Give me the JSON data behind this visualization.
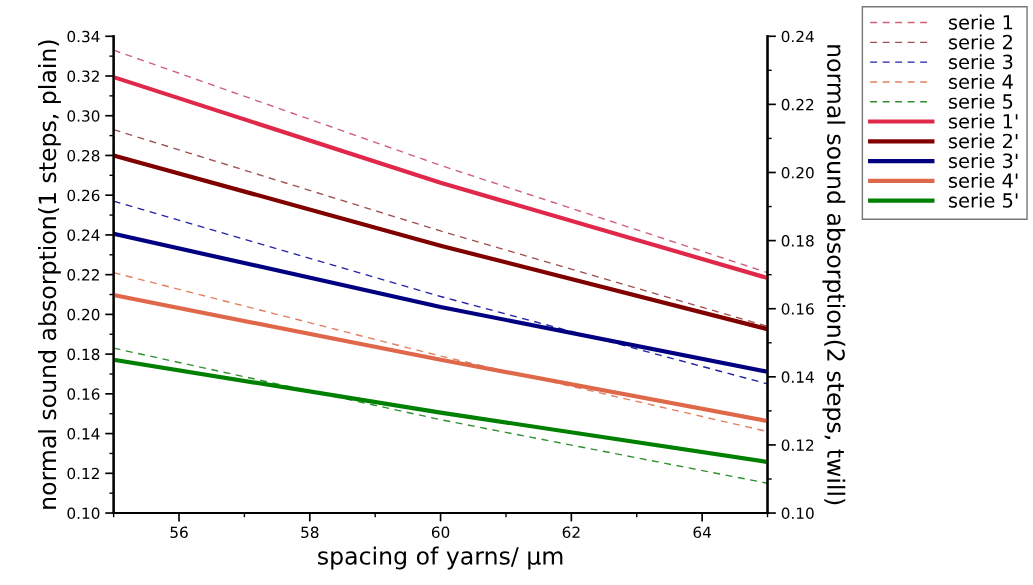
{
  "chart_data": {
    "type": "line",
    "xlabel": "spacing of yarns/ μm",
    "ylabel": "normal sound absorption(1 steps, plain)",
    "y2label": "normal sound absorption(2 steps, twill)",
    "x": [
      55,
      60,
      65
    ],
    "xlim": [
      55,
      65
    ],
    "xticks": [
      56,
      58,
      60,
      62,
      64
    ],
    "ylim": [
      0.1,
      0.34
    ],
    "yticks": [
      {
        "value": 0.1,
        "label": "0.10"
      },
      {
        "value": 0.12,
        "label": "0.12"
      },
      {
        "value": 0.14,
        "label": "0.14"
      },
      {
        "value": 0.16,
        "label": "0.16"
      },
      {
        "value": 0.18,
        "label": "0.18"
      },
      {
        "value": 0.2,
        "label": "0.20"
      },
      {
        "value": 0.22,
        "label": "0.22"
      },
      {
        "value": 0.24,
        "label": "0.24"
      },
      {
        "value": 0.26,
        "label": "0.26"
      },
      {
        "value": 0.28,
        "label": "0.28"
      },
      {
        "value": 0.3,
        "label": "0.30"
      },
      {
        "value": 0.32,
        "label": "0.32"
      },
      {
        "value": 0.34,
        "label": "0.34"
      }
    ],
    "y2lim": [
      0.1,
      0.24
    ],
    "y2ticks": [
      {
        "value": 0.1,
        "label": "0.10"
      },
      {
        "value": 0.12,
        "label": "0.12"
      },
      {
        "value": 0.14,
        "label": "0.14"
      },
      {
        "value": 0.16,
        "label": "0.16"
      },
      {
        "value": 0.18,
        "label": "0.18"
      },
      {
        "value": 0.2,
        "label": "0.20"
      },
      {
        "value": 0.22,
        "label": "0.22"
      },
      {
        "value": 0.24,
        "label": "0.24"
      }
    ],
    "grid": false,
    "legend": "top right",
    "marker": "none",
    "series": [
      {
        "name": "serie 1",
        "color": "#d0607a",
        "line_style": "dashed",
        "axis": "y",
        "values": [
          0.333,
          0.275,
          0.221
        ]
      },
      {
        "name": "serie 2",
        "color": "#a05050",
        "line_style": "dashed",
        "axis": "y",
        "values": [
          0.293,
          0.242,
          0.194
        ]
      },
      {
        "name": "serie 3",
        "color": "#2020a8",
        "line_style": "dashed",
        "axis": "y",
        "values": [
          0.257,
          0.209,
          0.165
        ]
      },
      {
        "name": "serie 4",
        "color": "#e08060",
        "line_style": "dashed",
        "axis": "y",
        "values": [
          0.221,
          0.179,
          0.141
        ]
      },
      {
        "name": "serie 5",
        "color": "#309030",
        "line_style": "dashed",
        "axis": "y",
        "values": [
          0.183,
          0.147,
          0.115
        ]
      },
      {
        "name": "serie 1'",
        "color": "#e0284a",
        "line_style": "solid",
        "axis": "y2",
        "values": [
          0.228,
          0.197,
          0.169
        ]
      },
      {
        "name": "serie 2'",
        "color": "#800000",
        "line_style": "solid",
        "axis": "y2",
        "values": [
          0.205,
          0.1785,
          0.154
        ]
      },
      {
        "name": "serie 3'",
        "color": "#000080",
        "line_style": "solid",
        "axis": "y2",
        "values": [
          0.182,
          0.1605,
          0.1415
        ]
      },
      {
        "name": "serie 4'",
        "color": "#e0684a",
        "line_style": "solid",
        "axis": "y2",
        "values": [
          0.164,
          0.145,
          0.127
        ]
      },
      {
        "name": "serie 5'",
        "color": "#008000",
        "line_style": "solid",
        "axis": "y2",
        "values": [
          0.145,
          0.1295,
          0.115
        ]
      }
    ]
  }
}
